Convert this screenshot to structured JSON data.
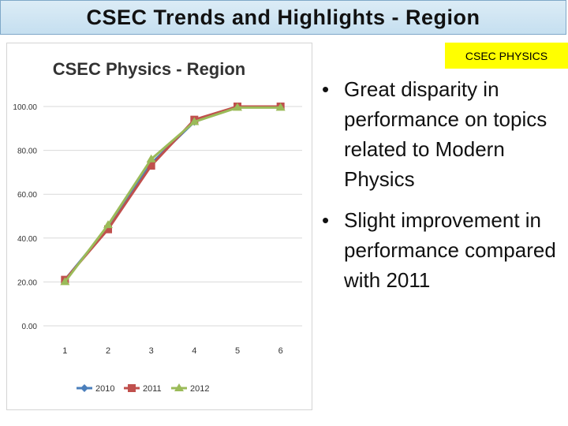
{
  "slide": {
    "title": "CSEC Trends and Highlights - Region",
    "badge": "CSEC PHYSICS",
    "bullets": [
      "Great disparity in performance on topics related to Modern Physics",
      "Slight improvement in performance compared with 2011"
    ]
  },
  "chart_data": {
    "type": "line",
    "title": "CSEC Physics - Region",
    "x": [
      1,
      2,
      3,
      4,
      5,
      6
    ],
    "xlabel": "",
    "ylabel": "",
    "ylim": [
      0,
      100
    ],
    "yticks": [
      "0.00",
      "20.00",
      "40.00",
      "60.00",
      "80.00",
      "100.00"
    ],
    "grid": true,
    "legend": "bottom",
    "series": [
      {
        "name": "2010",
        "values": [
          21,
          45,
          74,
          93,
          100,
          100
        ],
        "color": "#4a7ebb",
        "marker": "diamond"
      },
      {
        "name": "2011",
        "values": [
          21,
          44,
          73,
          94,
          100,
          100
        ],
        "color": "#c0504d",
        "marker": "square"
      },
      {
        "name": "2012",
        "values": [
          20,
          46,
          76,
          93,
          99.5,
          99.5
        ],
        "color": "#9bbb59",
        "marker": "triangle"
      }
    ]
  }
}
